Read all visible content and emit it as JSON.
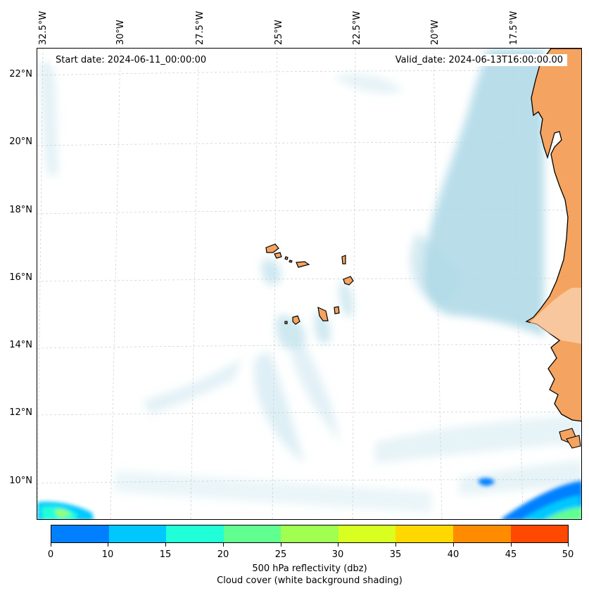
{
  "map": {
    "start_date": "Start date: 2024-06-11_00:00:00",
    "valid_date": "Valid_date: 2024-06-13T16:00:00.00",
    "land_color": "#f4a460",
    "coastline_color": "#000000",
    "cloud_color": "#add8e6",
    "longitude_labels": [
      "32.5°W",
      "30°W",
      "27.5°W",
      "25°W",
      "22.5°W",
      "20°W",
      "17.5°W"
    ],
    "latitude_labels": [
      "22°N",
      "20°N",
      "18°N",
      "16°N",
      "14°N",
      "12°N",
      "10°N"
    ]
  },
  "colorbar": {
    "label_line1": "500 hPa reflectivity (dbz)",
    "label_line2": "Cloud cover (white background shading)",
    "ticks": [
      "0",
      "10",
      "15",
      "20",
      "25",
      "30",
      "35",
      "40",
      "45",
      "50"
    ],
    "colors": [
      "#0080ff",
      "#00c8ff",
      "#20ffd8",
      "#60ff90",
      "#a0ff50",
      "#d8ff20",
      "#ffd800",
      "#ff8c00",
      "#ff4800"
    ]
  }
}
